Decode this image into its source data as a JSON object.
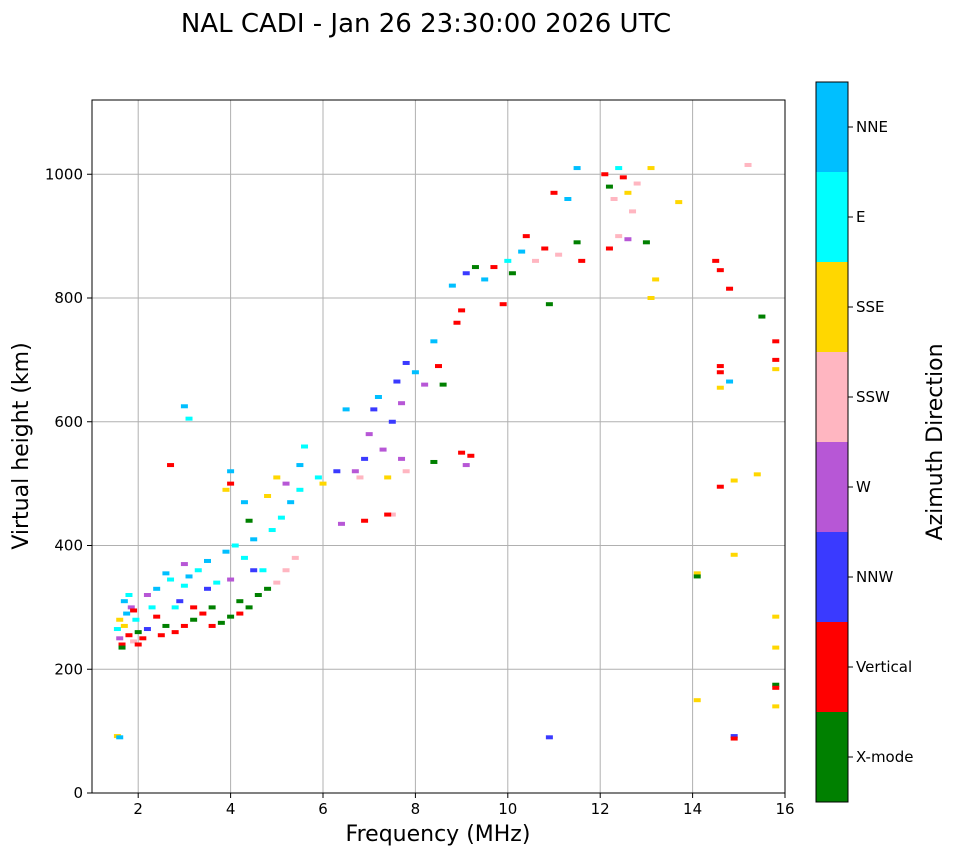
{
  "chart_data": {
    "type": "scatter",
    "title": "NAL CADI - Jan 26 23:30:00 2026 UTC",
    "xlabel": "Frequency (MHz)",
    "ylabel": "Virtual height (km)",
    "xlim": [
      1,
      16
    ],
    "ylim": [
      0,
      1120
    ],
    "x_ticks": [
      2,
      4,
      6,
      8,
      10,
      12,
      14,
      16
    ],
    "y_ticks": [
      0,
      200,
      400,
      600,
      800,
      1000
    ],
    "grid": true,
    "colorbar": {
      "title": "Azimuth Direction",
      "categories": [
        {
          "label": "X-mode",
          "color": "#008000"
        },
        {
          "label": "Vertical",
          "color": "#ff0000"
        },
        {
          "label": "NNW",
          "color": "#3a3aff"
        },
        {
          "label": "W",
          "color": "#b757d6"
        },
        {
          "label": "SSW",
          "color": "#ffb6c1"
        },
        {
          "label": "SSE",
          "color": "#ffd700"
        },
        {
          "label": "E",
          "color": "#00ffff"
        },
        {
          "label": "NNE",
          "color": "#00bfff"
        }
      ]
    },
    "points": [
      [
        1.55,
        265,
        "E"
      ],
      [
        1.6,
        250,
        "W"
      ],
      [
        1.65,
        240,
        "Vertical"
      ],
      [
        1.7,
        270,
        "SSE"
      ],
      [
        1.75,
        290,
        "NNE"
      ],
      [
        1.8,
        255,
        "Vertical"
      ],
      [
        1.85,
        300,
        "W"
      ],
      [
        1.9,
        245,
        "SSW"
      ],
      [
        1.95,
        280,
        "E"
      ],
      [
        2.0,
        260,
        "X-mode"
      ],
      [
        1.6,
        280,
        "SSE"
      ],
      [
        1.7,
        310,
        "NNE"
      ],
      [
        1.8,
        320,
        "E"
      ],
      [
        1.9,
        295,
        "Vertical"
      ],
      [
        2.0,
        240,
        "Vertical"
      ],
      [
        1.65,
        235,
        "X-mode"
      ],
      [
        1.55,
        92,
        "SSE"
      ],
      [
        1.6,
        90,
        "NNE"
      ],
      [
        2.1,
        250,
        "Vertical"
      ],
      [
        2.2,
        265,
        "NNW"
      ],
      [
        2.3,
        300,
        "E"
      ],
      [
        2.4,
        330,
        "NNE"
      ],
      [
        2.5,
        255,
        "Vertical"
      ],
      [
        2.6,
        270,
        "X-mode"
      ],
      [
        2.7,
        345,
        "E"
      ],
      [
        2.8,
        260,
        "Vertical"
      ],
      [
        2.9,
        310,
        "NNW"
      ],
      [
        3.0,
        335,
        "E"
      ],
      [
        2.2,
        320,
        "W"
      ],
      [
        2.4,
        285,
        "Vertical"
      ],
      [
        2.6,
        355,
        "NNE"
      ],
      [
        2.8,
        300,
        "E"
      ],
      [
        3.0,
        270,
        "Vertical"
      ],
      [
        3.1,
        350,
        "NNE"
      ],
      [
        3.2,
        280,
        "X-mode"
      ],
      [
        3.3,
        360,
        "E"
      ],
      [
        3.4,
        290,
        "Vertical"
      ],
      [
        3.5,
        375,
        "NNE"
      ],
      [
        3.6,
        300,
        "X-mode"
      ],
      [
        3.7,
        340,
        "E"
      ],
      [
        3.8,
        275,
        "X-mode"
      ],
      [
        3.9,
        390,
        "NNE"
      ],
      [
        4.0,
        285,
        "X-mode"
      ],
      [
        4.1,
        400,
        "E"
      ],
      [
        4.2,
        310,
        "X-mode"
      ],
      [
        4.3,
        380,
        "E"
      ],
      [
        4.4,
        300,
        "X-mode"
      ],
      [
        4.5,
        410,
        "NNE"
      ],
      [
        4.6,
        320,
        "X-mode"
      ],
      [
        4.7,
        360,
        "E"
      ],
      [
        4.8,
        330,
        "X-mode"
      ],
      [
        4.9,
        425,
        "E"
      ],
      [
        5.0,
        340,
        "SSW"
      ],
      [
        5.1,
        445,
        "E"
      ],
      [
        5.2,
        360,
        "SSW"
      ],
      [
        5.3,
        470,
        "NNE"
      ],
      [
        5.4,
        380,
        "SSW"
      ],
      [
        5.5,
        490,
        "E"
      ],
      [
        3.0,
        370,
        "W"
      ],
      [
        3.5,
        330,
        "NNW"
      ],
      [
        4.0,
        345,
        "W"
      ],
      [
        4.5,
        360,
        "NNW"
      ],
      [
        3.2,
        300,
        "Vertical"
      ],
      [
        3.6,
        270,
        "Vertical"
      ],
      [
        4.2,
        290,
        "Vertical"
      ],
      [
        2.7,
        530,
        "Vertical"
      ],
      [
        3.0,
        625,
        "NNE"
      ],
      [
        3.1,
        605,
        "E"
      ],
      [
        4.0,
        520,
        "NNE"
      ],
      [
        4.0,
        500,
        "Vertical"
      ],
      [
        3.9,
        490,
        "SSE"
      ],
      [
        4.3,
        470,
        "NNE"
      ],
      [
        4.4,
        440,
        "X-mode"
      ],
      [
        4.8,
        480,
        "SSE"
      ],
      [
        5.0,
        510,
        "SSE"
      ],
      [
        5.2,
        500,
        "W"
      ],
      [
        5.5,
        530,
        "NNE"
      ],
      [
        5.6,
        560,
        "E"
      ],
      [
        5.9,
        510,
        "E"
      ],
      [
        6.0,
        500,
        "SSE"
      ],
      [
        6.3,
        520,
        "NNW"
      ],
      [
        6.4,
        435,
        "W"
      ],
      [
        6.5,
        620,
        "NNE"
      ],
      [
        6.7,
        520,
        "W"
      ],
      [
        6.8,
        510,
        "SSW"
      ],
      [
        6.9,
        540,
        "NNW"
      ],
      [
        6.9,
        440,
        "Vertical"
      ],
      [
        7.0,
        580,
        "W"
      ],
      [
        7.1,
        620,
        "NNW"
      ],
      [
        7.2,
        640,
        "NNE"
      ],
      [
        7.3,
        555,
        "W"
      ],
      [
        7.4,
        510,
        "SSE"
      ],
      [
        7.5,
        600,
        "NNW"
      ],
      [
        7.6,
        665,
        "NNW"
      ],
      [
        7.7,
        630,
        "W"
      ],
      [
        7.8,
        695,
        "NNW"
      ],
      [
        7.7,
        540,
        "W"
      ],
      [
        7.8,
        520,
        "SSW"
      ],
      [
        7.5,
        450,
        "SSW"
      ],
      [
        7.4,
        450,
        "Vertical"
      ],
      [
        8.0,
        680,
        "NNE"
      ],
      [
        8.2,
        660,
        "W"
      ],
      [
        8.4,
        730,
        "NNE"
      ],
      [
        8.5,
        690,
        "Vertical"
      ],
      [
        8.6,
        660,
        "X-mode"
      ],
      [
        8.4,
        535,
        "X-mode"
      ],
      [
        8.8,
        820,
        "NNE"
      ],
      [
        8.9,
        760,
        "Vertical"
      ],
      [
        9.0,
        550,
        "Vertical"
      ],
      [
        9.1,
        530,
        "W"
      ],
      [
        9.2,
        545,
        "Vertical"
      ],
      [
        9.0,
        780,
        "Vertical"
      ],
      [
        9.1,
        840,
        "NNW"
      ],
      [
        9.3,
        850,
        "X-mode"
      ],
      [
        9.5,
        830,
        "NNE"
      ],
      [
        9.7,
        850,
        "Vertical"
      ],
      [
        9.9,
        790,
        "Vertical"
      ],
      [
        10.0,
        860,
        "E"
      ],
      [
        10.1,
        840,
        "X-mode"
      ],
      [
        10.3,
        875,
        "NNE"
      ],
      [
        10.4,
        900,
        "Vertical"
      ],
      [
        10.6,
        860,
        "SSW"
      ],
      [
        10.8,
        880,
        "Vertical"
      ],
      [
        10.9,
        790,
        "X-mode"
      ],
      [
        11.0,
        970,
        "Vertical"
      ],
      [
        11.1,
        870,
        "SSW"
      ],
      [
        11.3,
        960,
        "NNE"
      ],
      [
        11.5,
        1010,
        "NNE"
      ],
      [
        11.5,
        890,
        "X-mode"
      ],
      [
        11.6,
        860,
        "Vertical"
      ],
      [
        12.1,
        1000,
        "Vertical"
      ],
      [
        12.2,
        980,
        "X-mode"
      ],
      [
        12.3,
        960,
        "SSW"
      ],
      [
        12.4,
        1010,
        "E"
      ],
      [
        12.5,
        995,
        "Vertical"
      ],
      [
        12.6,
        970,
        "SSE"
      ],
      [
        12.7,
        940,
        "SSW"
      ],
      [
        12.8,
        985,
        "SSW"
      ],
      [
        12.2,
        880,
        "Vertical"
      ],
      [
        12.4,
        900,
        "SSW"
      ],
      [
        12.6,
        895,
        "W"
      ],
      [
        13.0,
        890,
        "X-mode"
      ],
      [
        13.1,
        1010,
        "SSE"
      ],
      [
        13.2,
        830,
        "SSE"
      ],
      [
        13.1,
        800,
        "SSE"
      ],
      [
        13.7,
        955,
        "SSE"
      ],
      [
        14.5,
        860,
        "Vertical"
      ],
      [
        14.6,
        845,
        "Vertical"
      ],
      [
        14.8,
        815,
        "Vertical"
      ],
      [
        15.2,
        1015,
        "SSW"
      ],
      [
        15.5,
        770,
        "X-mode"
      ],
      [
        15.8,
        730,
        "Vertical"
      ],
      [
        15.8,
        700,
        "Vertical"
      ],
      [
        15.8,
        685,
        "SSE"
      ],
      [
        14.6,
        690,
        "Vertical"
      ],
      [
        14.6,
        680,
        "Vertical"
      ],
      [
        14.8,
        665,
        "NNE"
      ],
      [
        14.6,
        655,
        "SSE"
      ],
      [
        14.6,
        495,
        "Vertical"
      ],
      [
        14.9,
        505,
        "SSE"
      ],
      [
        15.4,
        515,
        "SSE"
      ],
      [
        14.9,
        385,
        "SSE"
      ],
      [
        14.1,
        355,
        "SSE"
      ],
      [
        14.1,
        350,
        "X-mode"
      ],
      [
        15.8,
        285,
        "SSE"
      ],
      [
        15.8,
        235,
        "SSE"
      ],
      [
        15.8,
        175,
        "X-mode"
      ],
      [
        15.8,
        170,
        "Vertical"
      ],
      [
        14.1,
        150,
        "SSE"
      ],
      [
        15.8,
        140,
        "SSE"
      ],
      [
        14.9,
        92,
        "NNW"
      ],
      [
        14.9,
        88,
        "Vertical"
      ],
      [
        10.9,
        90,
        "NNW"
      ]
    ]
  }
}
